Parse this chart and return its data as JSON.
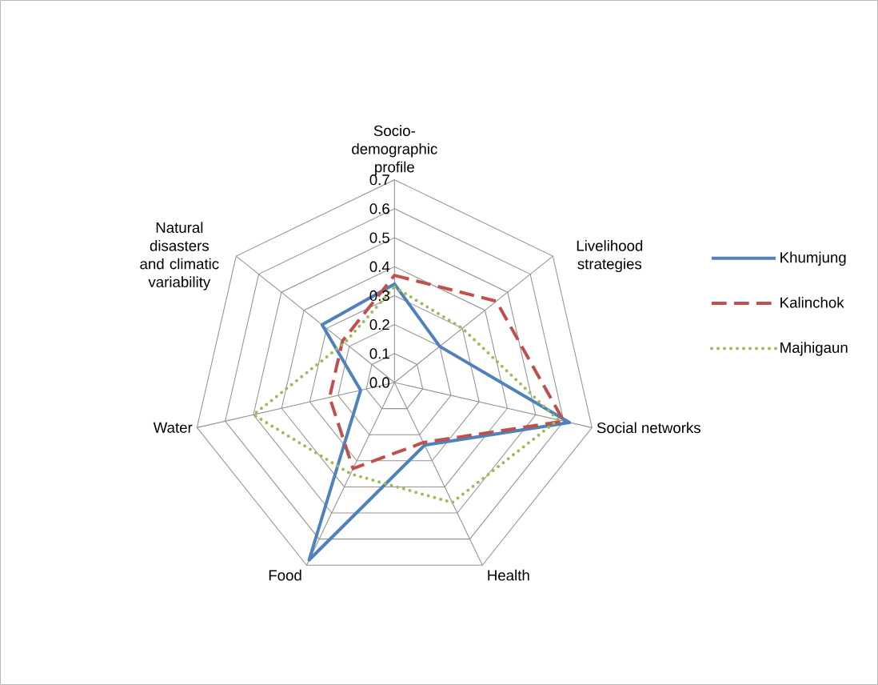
{
  "chart_data": {
    "type": "radar",
    "categories": [
      "Socio-demographic profile",
      "Livelihood strategies",
      "Social networks",
      "Health",
      "Food",
      "Water",
      "Natural disasters and climatic variability"
    ],
    "series": [
      {
        "name": "Khumjung",
        "color": "#4f81bd",
        "line_style": "solid",
        "values": [
          0.34,
          0.2,
          0.62,
          0.24,
          0.68,
          0.12,
          0.32
        ]
      },
      {
        "name": "Kalinchok",
        "color": "#c0504d",
        "line_style": "dashed",
        "values": [
          0.37,
          0.45,
          0.6,
          0.23,
          0.33,
          0.23,
          0.23
        ]
      },
      {
        "name": "Majhigaun",
        "color": "#9bbb59",
        "line_style": "dotted",
        "values": [
          0.33,
          0.3,
          0.58,
          0.46,
          0.35,
          0.5,
          0.22
        ]
      }
    ],
    "ylim": [
      0,
      0.7
    ],
    "yticks": [
      {
        "value": 0,
        "label": "0.0"
      },
      0.1,
      0.2,
      0.3,
      0.4,
      0.5,
      0.6,
      0.7
    ],
    "grid": true,
    "legend": "right",
    "marker": "none"
  }
}
